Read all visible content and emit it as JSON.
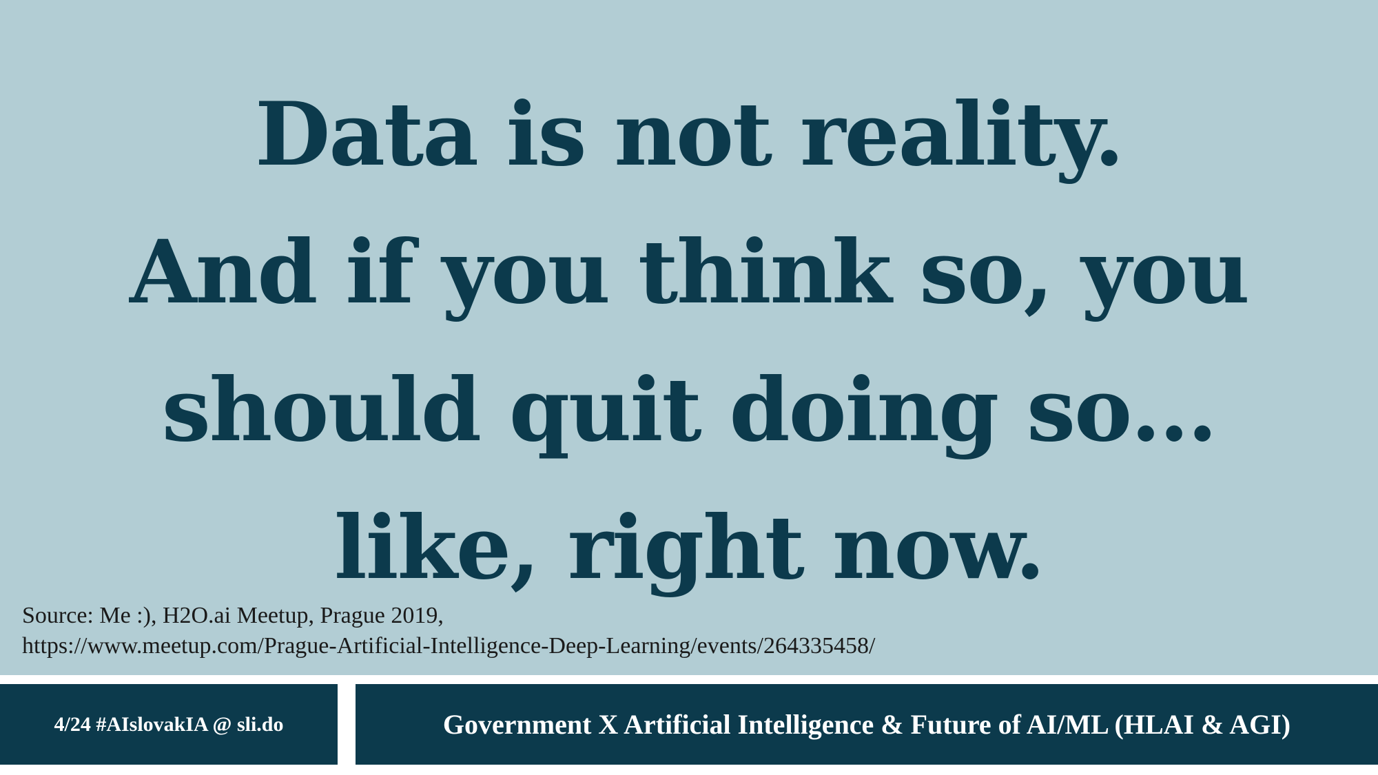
{
  "slide": {
    "quote_lines": [
      "Data is not reality.",
      "And if  you think so, you",
      "should quit doing so…",
      "like, right now."
    ],
    "source_lines": [
      "Source: Me :), H2O.ai Meetup, Prague 2019,",
      "https://www.meetup.com/Prague-Artificial-Intelligence-Deep-Learning/events/264335458/"
    ]
  },
  "footer": {
    "left_text": "4/24  #AIslovakIA @ sli.do",
    "right_text": "Government X Artificial Intelligence & Future of  AI/ML (HLAI & AGI)"
  },
  "colors": {
    "background": "#b2cdd4",
    "text_dark": "#0c3a4c",
    "footer_bg": "#0c3a4c",
    "footer_text": "#ffffff"
  }
}
